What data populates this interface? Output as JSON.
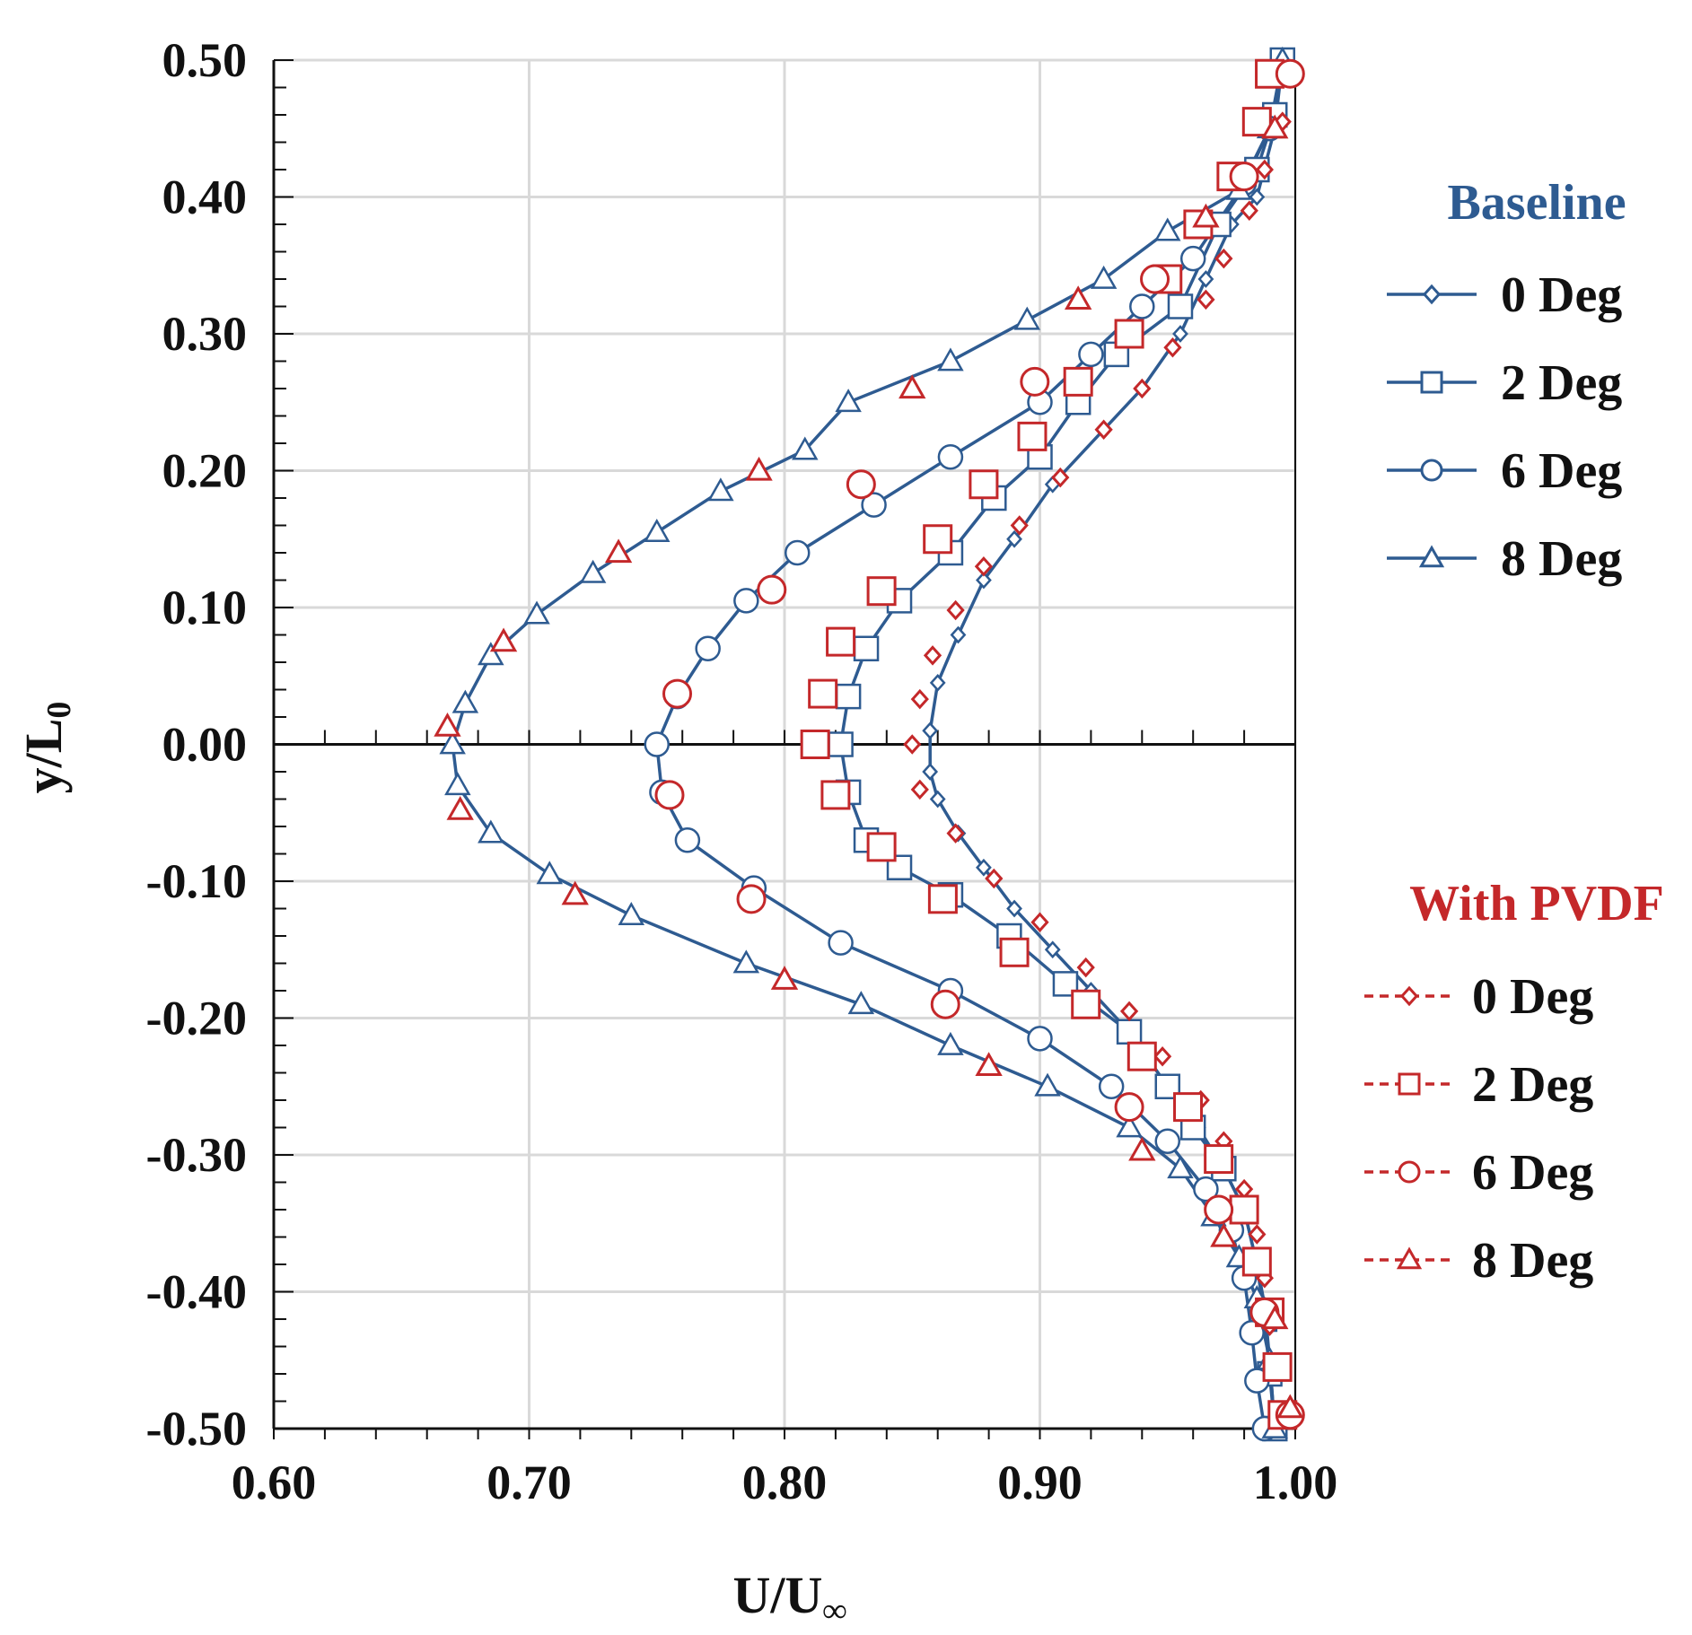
{
  "chart_data": {
    "type": "line",
    "title": "",
    "xlabel": "U/U",
    "xlabel_subscript": "∞",
    "ylabel": "y/L",
    "ylabel_subscript": "0",
    "xlim": [
      0.6,
      1.0
    ],
    "ylim": [
      -0.5,
      0.5
    ],
    "xticks": [
      0.6,
      0.7,
      0.8,
      0.9,
      1.0
    ],
    "xtick_labels": [
      "0.60",
      "0.70",
      "0.80",
      "0.90",
      "1.00"
    ],
    "yticks": [
      0.5,
      0.4,
      0.3,
      0.2,
      0.1,
      0.0,
      -0.1,
      -0.2,
      -0.3,
      -0.4,
      -0.5
    ],
    "ytick_labels": [
      "0.50",
      "0.40",
      "0.30",
      "0.20",
      "0.10",
      "0.00",
      "-0.10",
      "-0.20",
      "-0.30",
      "-0.40",
      "-0.50"
    ],
    "grid": true,
    "legend_groups": [
      {
        "title": "Baseline",
        "color": "#2e5b91",
        "line": "solid",
        "placement": "right-upper"
      },
      {
        "title": "With PVDF",
        "color": "#c4282a",
        "line": "dashed",
        "placement": "right-lower"
      }
    ],
    "series": [
      {
        "name": "0 Deg",
        "group": "Baseline",
        "marker": "diamond",
        "color": "#2e5b91",
        "connected": true,
        "points": [
          [
            0.995,
            0.5
          ],
          [
            0.992,
            0.45
          ],
          [
            0.985,
            0.4
          ],
          [
            0.975,
            0.38
          ],
          [
            0.965,
            0.34
          ],
          [
            0.955,
            0.3
          ],
          [
            0.94,
            0.26
          ],
          [
            0.925,
            0.23
          ],
          [
            0.905,
            0.19
          ],
          [
            0.89,
            0.15
          ],
          [
            0.878,
            0.12
          ],
          [
            0.868,
            0.08
          ],
          [
            0.86,
            0.045
          ],
          [
            0.857,
            0.01
          ],
          [
            0.857,
            -0.02
          ],
          [
            0.86,
            -0.04
          ],
          [
            0.868,
            -0.065
          ],
          [
            0.878,
            -0.09
          ],
          [
            0.89,
            -0.12
          ],
          [
            0.905,
            -0.15
          ],
          [
            0.92,
            -0.18
          ],
          [
            0.935,
            -0.21
          ],
          [
            0.95,
            -0.25
          ],
          [
            0.962,
            -0.28
          ],
          [
            0.972,
            -0.31
          ],
          [
            0.98,
            -0.34
          ],
          [
            0.985,
            -0.38
          ],
          [
            0.988,
            -0.41
          ],
          [
            0.99,
            -0.45
          ],
          [
            0.992,
            -0.5
          ]
        ]
      },
      {
        "name": "2 Deg",
        "group": "Baseline",
        "marker": "square",
        "color": "#2e5b91",
        "connected": true,
        "points": [
          [
            0.995,
            0.5
          ],
          [
            0.992,
            0.46
          ],
          [
            0.985,
            0.42
          ],
          [
            0.97,
            0.38
          ],
          [
            0.955,
            0.32
          ],
          [
            0.93,
            0.285
          ],
          [
            0.915,
            0.25
          ],
          [
            0.9,
            0.21
          ],
          [
            0.882,
            0.18
          ],
          [
            0.865,
            0.14
          ],
          [
            0.845,
            0.105
          ],
          [
            0.832,
            0.07
          ],
          [
            0.825,
            0.035
          ],
          [
            0.822,
            0.0
          ],
          [
            0.825,
            -0.035
          ],
          [
            0.832,
            -0.07
          ],
          [
            0.845,
            -0.09
          ],
          [
            0.865,
            -0.11
          ],
          [
            0.888,
            -0.14
          ],
          [
            0.91,
            -0.175
          ],
          [
            0.935,
            -0.21
          ],
          [
            0.95,
            -0.25
          ],
          [
            0.96,
            -0.28
          ],
          [
            0.972,
            -0.31
          ],
          [
            0.98,
            -0.34
          ],
          [
            0.985,
            -0.38
          ],
          [
            0.988,
            -0.42
          ],
          [
            0.99,
            -0.46
          ],
          [
            0.992,
            -0.5
          ]
        ]
      },
      {
        "name": "6 Deg",
        "group": "Baseline",
        "marker": "circle",
        "color": "#2e5b91",
        "connected": true,
        "points": [
          [
            0.995,
            0.49
          ],
          [
            0.99,
            0.45
          ],
          [
            0.98,
            0.41
          ],
          [
            0.96,
            0.355
          ],
          [
            0.94,
            0.32
          ],
          [
            0.92,
            0.285
          ],
          [
            0.9,
            0.25
          ],
          [
            0.865,
            0.21
          ],
          [
            0.835,
            0.175
          ],
          [
            0.805,
            0.14
          ],
          [
            0.785,
            0.105
          ],
          [
            0.77,
            0.07
          ],
          [
            0.758,
            0.035
          ],
          [
            0.75,
            0.0
          ],
          [
            0.752,
            -0.035
          ],
          [
            0.762,
            -0.07
          ],
          [
            0.788,
            -0.105
          ],
          [
            0.822,
            -0.145
          ],
          [
            0.865,
            -0.18
          ],
          [
            0.9,
            -0.215
          ],
          [
            0.928,
            -0.25
          ],
          [
            0.95,
            -0.29
          ],
          [
            0.965,
            -0.325
          ],
          [
            0.975,
            -0.355
          ],
          [
            0.98,
            -0.39
          ],
          [
            0.983,
            -0.43
          ],
          [
            0.985,
            -0.465
          ],
          [
            0.988,
            -0.5
          ]
        ]
      },
      {
        "name": "8 Deg",
        "group": "Baseline",
        "marker": "triangle",
        "color": "#2e5b91",
        "connected": true,
        "points": [
          [
            0.995,
            0.5
          ],
          [
            0.99,
            0.45
          ],
          [
            0.978,
            0.405
          ],
          [
            0.95,
            0.375
          ],
          [
            0.925,
            0.34
          ],
          [
            0.895,
            0.31
          ],
          [
            0.865,
            0.28
          ],
          [
            0.825,
            0.25
          ],
          [
            0.808,
            0.215
          ],
          [
            0.775,
            0.185
          ],
          [
            0.75,
            0.155
          ],
          [
            0.725,
            0.125
          ],
          [
            0.703,
            0.095
          ],
          [
            0.685,
            0.065
          ],
          [
            0.675,
            0.03
          ],
          [
            0.67,
            0.0
          ],
          [
            0.672,
            -0.03
          ],
          [
            0.685,
            -0.065
          ],
          [
            0.708,
            -0.095
          ],
          [
            0.74,
            -0.125
          ],
          [
            0.785,
            -0.16
          ],
          [
            0.83,
            -0.19
          ],
          [
            0.865,
            -0.22
          ],
          [
            0.903,
            -0.25
          ],
          [
            0.935,
            -0.28
          ],
          [
            0.955,
            -0.31
          ],
          [
            0.968,
            -0.345
          ],
          [
            0.978,
            -0.375
          ],
          [
            0.985,
            -0.405
          ],
          [
            0.99,
            -0.45
          ],
          [
            0.992,
            -0.5
          ]
        ]
      },
      {
        "name": "0 Deg",
        "group": "With PVDF",
        "marker": "diamond",
        "color": "#c4282a",
        "connected": false,
        "points": [
          [
            0.998,
            0.49
          ],
          [
            0.995,
            0.455
          ],
          [
            0.988,
            0.42
          ],
          [
            0.982,
            0.39
          ],
          [
            0.972,
            0.355
          ],
          [
            0.965,
            0.325
          ],
          [
            0.952,
            0.29
          ],
          [
            0.94,
            0.26
          ],
          [
            0.925,
            0.23
          ],
          [
            0.908,
            0.195
          ],
          [
            0.892,
            0.16
          ],
          [
            0.878,
            0.13
          ],
          [
            0.867,
            0.098
          ],
          [
            0.858,
            0.065
          ],
          [
            0.853,
            0.033
          ],
          [
            0.85,
            0.0
          ],
          [
            0.853,
            -0.033
          ],
          [
            0.867,
            -0.065
          ],
          [
            0.882,
            -0.098
          ],
          [
            0.9,
            -0.13
          ],
          [
            0.918,
            -0.163
          ],
          [
            0.935,
            -0.195
          ],
          [
            0.948,
            -0.228
          ],
          [
            0.963,
            -0.26
          ],
          [
            0.972,
            -0.29
          ],
          [
            0.98,
            -0.325
          ],
          [
            0.985,
            -0.358
          ],
          [
            0.988,
            -0.39
          ],
          [
            0.99,
            -0.425
          ],
          [
            0.993,
            -0.455
          ],
          [
            0.998,
            -0.49
          ]
        ]
      },
      {
        "name": "2 Deg",
        "group": "With PVDF",
        "marker": "square",
        "color": "#c4282a",
        "connected": false,
        "points": [
          [
            0.99,
            0.49
          ],
          [
            0.985,
            0.455
          ],
          [
            0.975,
            0.415
          ],
          [
            0.962,
            0.38
          ],
          [
            0.95,
            0.34
          ],
          [
            0.935,
            0.3
          ],
          [
            0.915,
            0.265
          ],
          [
            0.897,
            0.225
          ],
          [
            0.878,
            0.19
          ],
          [
            0.86,
            0.15
          ],
          [
            0.838,
            0.112
          ],
          [
            0.822,
            0.075
          ],
          [
            0.815,
            0.037
          ],
          [
            0.812,
            0.0
          ],
          [
            0.82,
            -0.037
          ],
          [
            0.838,
            -0.075
          ],
          [
            0.862,
            -0.113
          ],
          [
            0.89,
            -0.152
          ],
          [
            0.918,
            -0.19
          ],
          [
            0.94,
            -0.228
          ],
          [
            0.958,
            -0.265
          ],
          [
            0.97,
            -0.303
          ],
          [
            0.98,
            -0.34
          ],
          [
            0.985,
            -0.378
          ],
          [
            0.99,
            -0.415
          ],
          [
            0.993,
            -0.455
          ],
          [
            0.995,
            -0.49
          ]
        ]
      },
      {
        "name": "6 Deg",
        "group": "With PVDF",
        "marker": "circle",
        "color": "#c4282a",
        "connected": false,
        "points": [
          [
            0.998,
            0.49
          ],
          [
            0.98,
            0.415
          ],
          [
            0.945,
            0.34
          ],
          [
            0.898,
            0.265
          ],
          [
            0.83,
            0.19
          ],
          [
            0.795,
            0.113
          ],
          [
            0.758,
            0.037
          ],
          [
            0.755,
            -0.037
          ],
          [
            0.787,
            -0.113
          ],
          [
            0.863,
            -0.19
          ],
          [
            0.935,
            -0.265
          ],
          [
            0.97,
            -0.34
          ],
          [
            0.988,
            -0.415
          ],
          [
            0.998,
            -0.49
          ]
        ]
      },
      {
        "name": "8 Deg",
        "group": "With PVDF",
        "marker": "triangle",
        "color": "#c4282a",
        "connected": false,
        "points": [
          [
            0.992,
            0.45
          ],
          [
            0.965,
            0.385
          ],
          [
            0.915,
            0.325
          ],
          [
            0.85,
            0.26
          ],
          [
            0.79,
            0.2
          ],
          [
            0.735,
            0.14
          ],
          [
            0.69,
            0.075
          ],
          [
            0.668,
            0.013
          ],
          [
            0.673,
            -0.048
          ],
          [
            0.718,
            -0.11
          ],
          [
            0.8,
            -0.172
          ],
          [
            0.88,
            -0.235
          ],
          [
            0.94,
            -0.297
          ],
          [
            0.972,
            -0.36
          ],
          [
            0.992,
            -0.42
          ],
          [
            0.998,
            -0.485
          ]
        ]
      }
    ]
  }
}
